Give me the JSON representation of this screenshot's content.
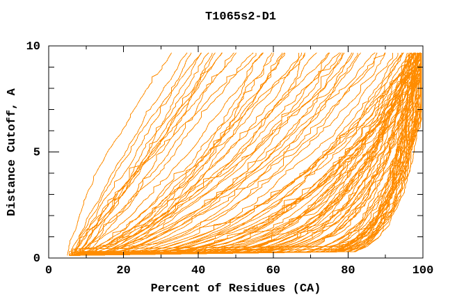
{
  "chart_data": {
    "type": "line",
    "title": "T1065s2-D1",
    "xlabel": "Percent of Residues (CA)",
    "ylabel": "Distance Cutoff, A",
    "xlim": [
      0,
      100
    ],
    "ylim": [
      0,
      10
    ],
    "x_major_ticks": [
      0,
      20,
      40,
      60,
      80,
      100
    ],
    "x_minor_tick_step": 10,
    "y_major_ticks": [
      0,
      5,
      10
    ],
    "y_minor_tick_step": 1,
    "grid": false,
    "legend": false,
    "background": "#FFFFFF",
    "frame_color": "#000000",
    "line_color": "#FF8C00",
    "n_curves": 120,
    "description": "Cumulative distance curves for all predicted models of target T1065s2-D1: percent of CA residues (x) fitting under a distance cutoff (y). Dense bundle of good models hugs the bottom-right; worst models rise to 9.7 A by ~35% of residues.",
    "curve_model": "x(y) = x0 + (xend - x0) * (y / y_top)^a, monotone increasing with jitter; each curve entry is [x0_percent, xend_percent_at_top, a]",
    "y_start": 0.3,
    "y_top": 9.68,
    "jitter_seed": 12,
    "curves": [
      [
        5.0,
        34,
        1.35
      ],
      [
        5.5,
        36,
        1.15
      ],
      [
        6.0,
        38,
        1.0
      ],
      [
        6.5,
        40,
        1.2
      ],
      [
        5.8,
        42,
        0.95
      ],
      [
        7.0,
        44,
        1.05
      ],
      [
        6.2,
        46,
        0.9
      ],
      [
        7.5,
        48,
        1.1
      ],
      [
        6.8,
        50,
        0.85
      ],
      [
        5.5,
        52,
        1.0
      ],
      [
        7.2,
        54,
        0.92
      ],
      [
        6.0,
        55,
        1.15
      ],
      [
        7.8,
        45,
        0.75
      ],
      [
        6.4,
        41,
        0.8
      ],
      [
        6.0,
        57,
        0.82
      ],
      [
        7.0,
        58,
        0.65
      ],
      [
        5.8,
        60,
        0.75
      ],
      [
        6.5,
        61,
        0.55
      ],
      [
        7.2,
        62,
        0.7
      ],
      [
        6.0,
        64,
        0.5
      ],
      [
        7.5,
        65,
        0.66
      ],
      [
        6.8,
        66,
        0.78
      ],
      [
        5.5,
        68,
        0.6
      ],
      [
        7.0,
        69,
        0.72
      ],
      [
        6.3,
        70,
        0.52
      ],
      [
        7.8,
        72,
        0.64
      ],
      [
        6.0,
        73,
        0.74
      ],
      [
        6.6,
        74,
        0.56
      ],
      [
        7.3,
        76,
        0.68
      ],
      [
        5.8,
        77,
        0.5
      ],
      [
        6.9,
        78,
        0.62
      ],
      [
        7.6,
        80,
        0.55
      ],
      [
        6.1,
        81,
        0.7
      ],
      [
        6.7,
        82,
        0.48
      ],
      [
        7.1,
        84,
        0.6
      ],
      [
        5.9,
        85,
        0.52
      ],
      [
        7.4,
        86,
        0.65
      ],
      [
        6.2,
        88,
        0.45
      ],
      [
        6.8,
        90,
        0.55
      ],
      [
        7.0,
        92,
        0.5
      ],
      [
        6.0,
        94,
        0.45
      ],
      [
        7.1,
        96,
        0.44
      ],
      [
        5.6,
        98,
        0.43
      ],
      [
        6.6,
        100,
        0.42
      ],
      [
        7.6,
        95,
        0.41
      ],
      [
        6.2,
        97,
        0.4
      ],
      [
        7.2,
        99,
        0.39
      ],
      [
        5.8,
        100,
        0.38
      ],
      [
        6.9,
        96,
        0.37
      ],
      [
        7.9,
        98,
        0.36
      ],
      [
        6.4,
        100,
        0.35
      ],
      [
        7.4,
        97,
        0.34
      ],
      [
        6.0,
        99,
        0.33
      ],
      [
        7.0,
        100,
        0.32
      ],
      [
        5.7,
        98,
        0.31
      ],
      [
        6.7,
        100,
        0.3
      ],
      [
        7.7,
        99,
        0.29
      ],
      [
        6.3,
        94,
        0.285
      ],
      [
        7.3,
        98,
        0.275
      ],
      [
        5.9,
        100,
        0.27
      ],
      [
        6.9,
        99,
        0.26
      ],
      [
        7.8,
        100,
        0.255
      ],
      [
        6.5,
        96,
        0.25
      ],
      [
        7.5,
        100,
        0.24
      ],
      [
        6.1,
        97,
        0.235
      ],
      [
        7.1,
        100,
        0.23
      ],
      [
        5.8,
        99,
        0.225
      ],
      [
        6.8,
        100,
        0.22
      ],
      [
        7.6,
        98,
        0.215
      ],
      [
        6.4,
        100,
        0.21
      ],
      [
        7.4,
        99,
        0.205
      ],
      [
        6.0,
        100,
        0.2
      ],
      [
        7.0,
        97,
        0.195
      ],
      [
        5.6,
        100,
        0.19
      ],
      [
        6.6,
        99,
        0.185
      ],
      [
        7.7,
        100,
        0.18
      ],
      [
        6.2,
        98,
        0.175
      ],
      [
        7.2,
        100,
        0.17
      ],
      [
        5.9,
        99,
        0.165
      ],
      [
        6.9,
        100,
        0.16
      ],
      [
        7.8,
        100,
        0.155
      ],
      [
        6.5,
        98,
        0.15
      ],
      [
        7.5,
        100,
        0.145
      ],
      [
        6.1,
        99,
        0.14
      ],
      [
        7.1,
        100,
        0.135
      ],
      [
        5.7,
        100,
        0.13
      ],
      [
        6.7,
        99,
        0.125
      ],
      [
        7.6,
        100,
        0.12
      ],
      [
        6.3,
        100,
        0.115
      ],
      [
        7.3,
        99,
        0.11
      ],
      [
        6.0,
        100,
        0.105
      ],
      [
        7.0,
        100,
        0.1
      ],
      [
        5.8,
        100,
        0.098
      ],
      [
        6.8,
        99,
        0.095
      ],
      [
        7.7,
        100,
        0.09
      ],
      [
        6.4,
        100,
        0.088
      ],
      [
        7.4,
        100,
        0.085
      ],
      [
        6.1,
        100,
        0.082
      ],
      [
        7.1,
        99,
        0.08
      ],
      [
        5.9,
        100,
        0.078
      ],
      [
        6.9,
        100,
        0.075
      ],
      [
        7.8,
        100,
        0.072
      ],
      [
        6.5,
        100,
        0.07
      ],
      [
        7.5,
        100,
        0.068
      ],
      [
        6.2,
        100,
        0.065
      ],
      [
        7.2,
        100,
        0.062
      ],
      [
        6.0,
        100,
        0.06
      ],
      [
        6.8,
        100,
        0.078
      ],
      [
        7.6,
        100,
        0.088
      ],
      [
        6.4,
        100,
        0.092
      ],
      [
        7.4,
        100,
        0.07
      ],
      [
        6.1,
        100,
        0.08
      ],
      [
        7.0,
        100,
        0.076
      ],
      [
        5.8,
        100,
        0.084
      ],
      [
        6.7,
        100,
        0.062
      ],
      [
        7.5,
        100,
        0.09
      ],
      [
        6.3,
        100,
        0.068
      ],
      [
        7.2,
        100,
        0.086
      ],
      [
        6.0,
        100,
        0.074
      ],
      [
        6.9,
        100,
        0.064
      ]
    ]
  }
}
